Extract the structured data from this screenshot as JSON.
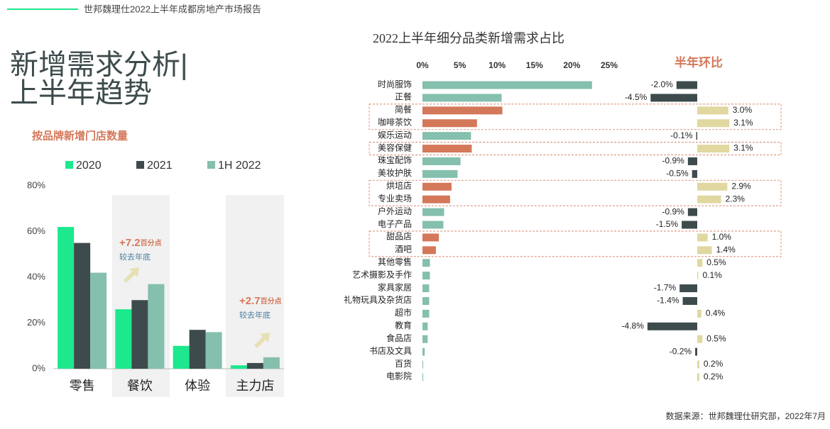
{
  "header": {
    "title": "世邦魏理仕2022上半年成都房地产市场报告"
  },
  "heading": [
    "新增需求分析|",
    "上半年趋势"
  ],
  "source": "数据来源：世邦魏理仕研究部，2022年7月",
  "chart_data": [
    {
      "type": "bar",
      "title": "按品牌新增门店数量",
      "categories": [
        "零售",
        "餐饮",
        "体验",
        "主力店"
      ],
      "series": [
        {
          "name": "2020",
          "color": "#1de88e",
          "values": [
            62,
            26,
            10,
            1.5
          ]
        },
        {
          "name": "2021",
          "color": "#3d4b4c",
          "values": [
            55,
            30,
            17,
            2.5
          ]
        },
        {
          "name": "1H 2022",
          "color": "#85bfae",
          "values": [
            42,
            37,
            16,
            5
          ]
        }
      ],
      "ylim": [
        0,
        80
      ],
      "yticks": [
        {
          "value": 0,
          "label": "0%"
        },
        {
          "value": 20,
          "label": "20%"
        },
        {
          "value": 40,
          "label": "40%"
        },
        {
          "value": 60,
          "label": "60%"
        },
        {
          "value": 80,
          "label": "80%"
        }
      ],
      "annotations": [
        {
          "text": "+7.2",
          "unit": "百分点",
          "note": "较去年底"
        },
        {
          "text": "+2.7",
          "unit": "百分点",
          "note": "较去年底"
        }
      ]
    },
    {
      "type": "bar",
      "orientation": "horizontal",
      "title": "2022上半年细分品类新增需求占比",
      "categories": [
        "时尚服饰",
        "正餐",
        "简餐",
        "咖啡茶饮",
        "娱乐运动",
        "美容保健",
        "珠宝配饰",
        "美妆护肤",
        "烘培店",
        "专业卖场",
        "户外运动",
        "电子产品",
        "甜品店",
        "酒吧",
        "其他零售",
        "艺术摄影及手作",
        "家具家居",
        "礼物玩具及杂货店",
        "超市",
        "教育",
        "食品店",
        "书店及文具",
        "百货",
        "电影院"
      ],
      "values": [
        22.7,
        10.6,
        10.7,
        7.3,
        6.5,
        6.6,
        5.1,
        4.7,
        3.9,
        3.7,
        2.9,
        2.8,
        2.2,
        1.8,
        1.0,
        1.0,
        0.9,
        0.9,
        0.9,
        0.7,
        0.7,
        0.3,
        0.1,
        0.1
      ],
      "colors": [
        "#85bfae",
        "#85bfae",
        "#d4785a",
        "#d4785a",
        "#85bfae",
        "#d4785a",
        "#85bfae",
        "#85bfae",
        "#d4785a",
        "#d4785a",
        "#85bfae",
        "#85bfae",
        "#d4785a",
        "#d4785a",
        "#85bfae",
        "#85bfae",
        "#85bfae",
        "#85bfae",
        "#85bfae",
        "#85bfae",
        "#85bfae",
        "#85bfae",
        "#85bfae",
        "#85bfae"
      ],
      "xlim": [
        0,
        25
      ],
      "xticks": [
        {
          "value": 0,
          "label": "0%"
        },
        {
          "value": 5,
          "label": "5%"
        },
        {
          "value": 10,
          "label": "10%"
        },
        {
          "value": 15,
          "label": "15%"
        },
        {
          "value": 20,
          "label": "20%"
        },
        {
          "value": 25,
          "label": "25%"
        }
      ]
    },
    {
      "type": "bar",
      "orientation": "horizontal",
      "title": "半年环比",
      "values": [
        -2.0,
        -4.5,
        3.0,
        3.1,
        -0.1,
        3.1,
        -0.9,
        -0.5,
        2.9,
        2.3,
        -0.9,
        -1.5,
        1.0,
        1.4,
        0.5,
        0.1,
        -1.7,
        -1.4,
        0.4,
        -4.8,
        0.5,
        -0.2,
        0.2,
        0.2
      ],
      "value_labels": [
        "-2.0%",
        "-4.5%",
        "3.0%",
        "3.1%",
        "-0.1%",
        "3.1%",
        "-0.9%",
        "-0.5%",
        "2.9%",
        "2.3%",
        "-0.9%",
        "-1.5%",
        "1.0%",
        "1.4%",
        "0.5%",
        "0.1%",
        "-1.7%",
        "-1.4%",
        "0.4%",
        "-4.8%",
        "0.5%",
        "-0.2%",
        "0.2%",
        "0.2%"
      ],
      "positive_color": "#e0d8a0",
      "negative_color": "#3d4b4c"
    }
  ]
}
